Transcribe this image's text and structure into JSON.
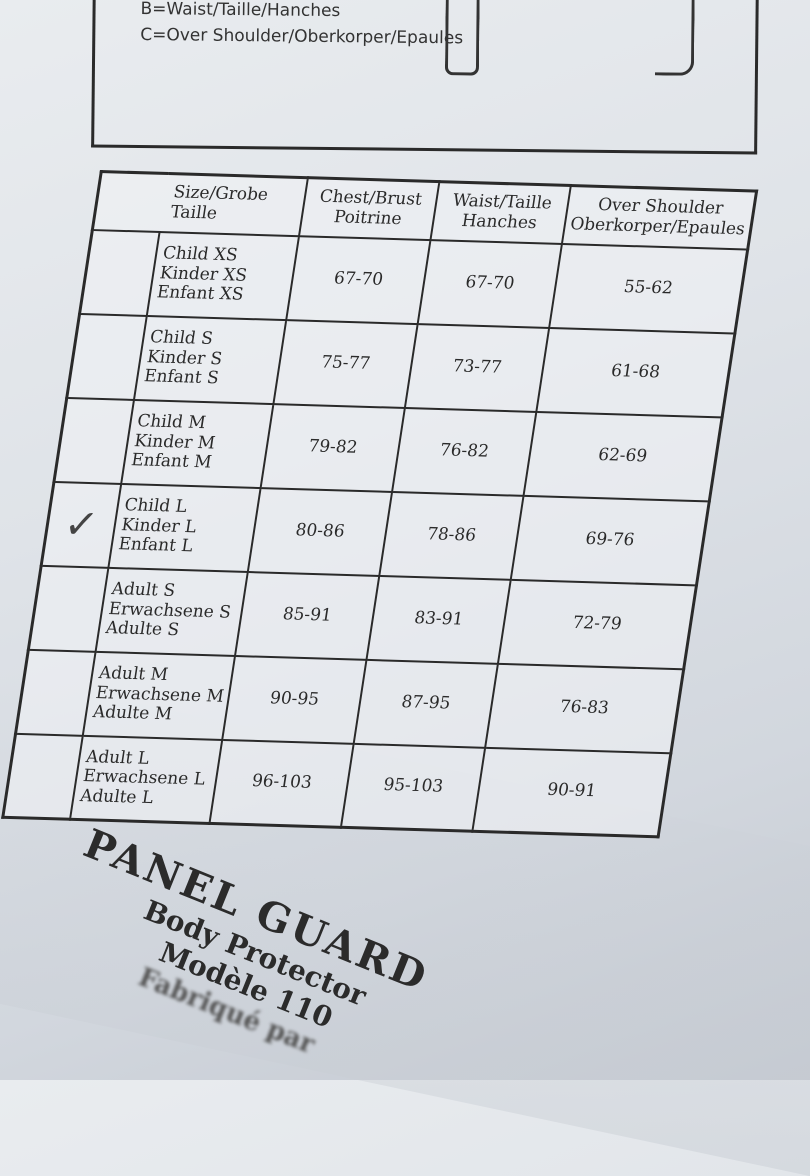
{
  "legend": {
    "line_b": "B=Waist/Taille/Hanches",
    "line_c": "C=Over Shoulder/Oberkorper/Epaules"
  },
  "table": {
    "headers": [
      "Size/Grobe\nTaille",
      "Chest/Brust\nPoitrine",
      "Waist/Taille\nHanches",
      "Over Shoulder\nOberkorper/Epaules"
    ],
    "rows": [
      {
        "size": [
          "Child XS",
          "Kinder XS",
          "Enfant XS"
        ],
        "chest": "67-70",
        "waist": "67-70",
        "shoulder": "55-62",
        "checked": false
      },
      {
        "size": [
          "Child S",
          "Kinder S",
          "Enfant S"
        ],
        "chest": "75-77",
        "waist": "73-77",
        "shoulder": "61-68",
        "checked": false
      },
      {
        "size": [
          "Child M",
          "Kinder M",
          "Enfant M"
        ],
        "chest": "79-82",
        "waist": "76-82",
        "shoulder": "62-69",
        "checked": false
      },
      {
        "size": [
          "Child L",
          "Kinder L",
          "Enfant L"
        ],
        "chest": "80-86",
        "waist": "78-86",
        "shoulder": "69-76",
        "checked": true
      },
      {
        "size": [
          "Adult S",
          "Erwachsene S",
          "Adulte S"
        ],
        "chest": "85-91",
        "waist": "83-91",
        "shoulder": "72-79",
        "checked": false
      },
      {
        "size": [
          "Adult M",
          "Erwachsene M",
          "Adulte M"
        ],
        "chest": "90-95",
        "waist": "87-95",
        "shoulder": "76-83",
        "checked": false
      },
      {
        "size": [
          "Adult L",
          "Erwachsene L",
          "Adulte L"
        ],
        "chest": "96-103",
        "waist": "95-103",
        "shoulder": "90-91",
        "checked": false
      }
    ]
  },
  "label": {
    "brand": "PANEL GUARD",
    "product": "Body Protector",
    "model": "Modèle 110",
    "made_by": "Fabriqué par"
  }
}
